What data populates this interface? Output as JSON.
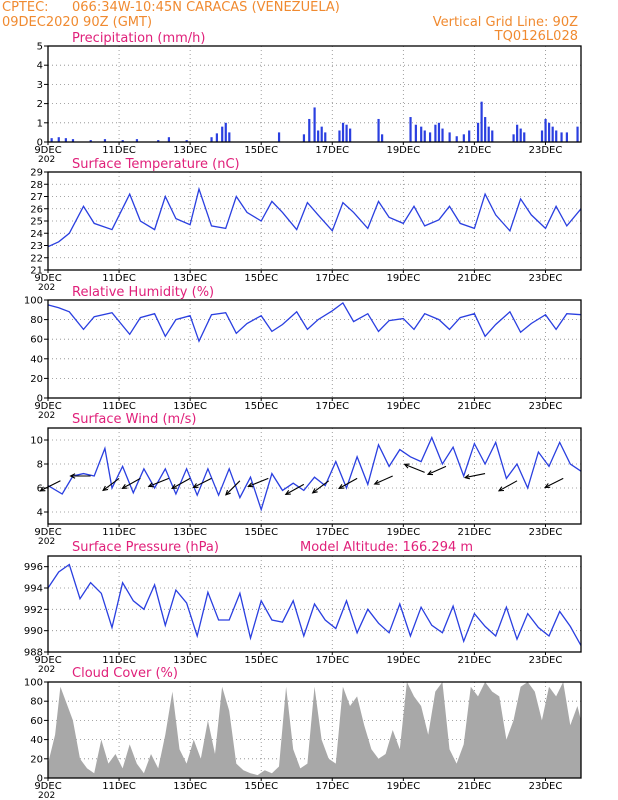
{
  "header": {
    "source": "CPTEC:",
    "location": "066:34W-10:45N  CARACAS (VENEZUELA)",
    "init_time": "09DEC2020 90Z (GMT)",
    "grid_note": "Vertical Grid Line: 90Z",
    "code": "TQ0126L028"
  },
  "colors": {
    "header": "#f08a30",
    "titles": "#e0207a",
    "series": "#2a3fe0",
    "cloud_fill": "#a8a8a8",
    "arrows": "#000000"
  },
  "x_axis": {
    "tick_labels": [
      "9DEC",
      "11DEC",
      "13DEC",
      "15DEC",
      "17DEC",
      "19DEC",
      "21DEC",
      "23DEC"
    ],
    "tick_days": [
      0,
      2,
      4,
      6,
      8,
      10,
      12,
      14
    ],
    "range_days": [
      0,
      15
    ],
    "year_stub": "202"
  },
  "chart_data": [
    {
      "id": "precipitation",
      "type": "bar",
      "title": "Precipitation (mm/h)",
      "ylim": [
        0,
        5
      ],
      "yticks": [
        0,
        1,
        2,
        3,
        4,
        5
      ],
      "grid": true,
      "events": [
        {
          "day": 0.1,
          "value": 0.2
        },
        {
          "day": 0.3,
          "value": 0.25
        },
        {
          "day": 0.5,
          "value": 0.2
        },
        {
          "day": 0.7,
          "value": 0.15
        },
        {
          "day": 1.2,
          "value": 0.1
        },
        {
          "day": 1.6,
          "value": 0.15
        },
        {
          "day": 2.1,
          "value": 0.1
        },
        {
          "day": 2.5,
          "value": 0.15
        },
        {
          "day": 3.1,
          "value": 0.1
        },
        {
          "day": 3.4,
          "value": 0.25
        },
        {
          "day": 3.9,
          "value": 0.1
        },
        {
          "day": 4.6,
          "value": 0.25
        },
        {
          "day": 4.75,
          "value": 0.45
        },
        {
          "day": 4.9,
          "value": 0.8
        },
        {
          "day": 5.0,
          "value": 1.0
        },
        {
          "day": 5.1,
          "value": 0.5
        },
        {
          "day": 6.5,
          "value": 0.5
        },
        {
          "day": 7.2,
          "value": 0.4
        },
        {
          "day": 7.35,
          "value": 1.2
        },
        {
          "day": 7.5,
          "value": 1.8
        },
        {
          "day": 7.6,
          "value": 0.6
        },
        {
          "day": 7.7,
          "value": 0.8
        },
        {
          "day": 7.8,
          "value": 0.5
        },
        {
          "day": 8.2,
          "value": 0.6
        },
        {
          "day": 8.3,
          "value": 1.0
        },
        {
          "day": 8.4,
          "value": 0.9
        },
        {
          "day": 8.5,
          "value": 0.7
        },
        {
          "day": 9.3,
          "value": 1.2
        },
        {
          "day": 9.4,
          "value": 0.4
        },
        {
          "day": 10.2,
          "value": 1.3
        },
        {
          "day": 10.35,
          "value": 0.9
        },
        {
          "day": 10.5,
          "value": 0.8
        },
        {
          "day": 10.6,
          "value": 0.6
        },
        {
          "day": 10.75,
          "value": 0.5
        },
        {
          "day": 10.9,
          "value": 0.9
        },
        {
          "day": 11.0,
          "value": 1.0
        },
        {
          "day": 11.1,
          "value": 0.7
        },
        {
          "day": 11.3,
          "value": 0.5
        },
        {
          "day": 11.5,
          "value": 0.3
        },
        {
          "day": 11.7,
          "value": 0.4
        },
        {
          "day": 11.85,
          "value": 0.6
        },
        {
          "day": 12.1,
          "value": 1.0
        },
        {
          "day": 12.2,
          "value": 2.1
        },
        {
          "day": 12.3,
          "value": 1.3
        },
        {
          "day": 12.4,
          "value": 0.8
        },
        {
          "day": 12.5,
          "value": 0.6
        },
        {
          "day": 13.1,
          "value": 0.4
        },
        {
          "day": 13.2,
          "value": 0.9
        },
        {
          "day": 13.3,
          "value": 0.7
        },
        {
          "day": 13.4,
          "value": 0.5
        },
        {
          "day": 13.9,
          "value": 0.6
        },
        {
          "day": 14.0,
          "value": 1.2
        },
        {
          "day": 14.1,
          "value": 1.0
        },
        {
          "day": 14.2,
          "value": 0.8
        },
        {
          "day": 14.3,
          "value": 0.6
        },
        {
          "day": 14.45,
          "value": 0.5
        },
        {
          "day": 14.6,
          "value": 0.5
        },
        {
          "day": 14.9,
          "value": 0.8
        }
      ]
    },
    {
      "id": "temperature",
      "type": "line",
      "title": "Surface Temperature (nC)",
      "ylim": [
        21,
        29
      ],
      "yticks": [
        21,
        22,
        23,
        24,
        25,
        26,
        27,
        28,
        29
      ],
      "grid": true,
      "x": [
        0,
        0.3,
        0.6,
        1,
        1.3,
        1.8,
        2.3,
        2.6,
        3,
        3.3,
        3.6,
        4,
        4.25,
        4.6,
        5,
        5.3,
        5.6,
        6,
        6.3,
        6.6,
        7,
        7.3,
        7.6,
        8,
        8.3,
        8.6,
        9,
        9.3,
        9.6,
        10,
        10.3,
        10.6,
        11,
        11.3,
        11.6,
        12,
        12.3,
        12.6,
        13,
        13.3,
        13.6,
        14,
        14.3,
        14.6,
        15
      ],
      "y": [
        22.9,
        23.3,
        24.0,
        26.2,
        24.8,
        24.3,
        27.2,
        25.0,
        24.3,
        27.0,
        25.2,
        24.7,
        27.6,
        24.6,
        24.4,
        27.0,
        25.7,
        25.0,
        26.6,
        25.7,
        24.3,
        26.5,
        25.5,
        24.2,
        26.5,
        25.7,
        24.4,
        26.6,
        25.3,
        24.8,
        26.2,
        24.6,
        25.1,
        26.2,
        24.8,
        24.4,
        27.2,
        25.5,
        24.2,
        26.8,
        25.5,
        24.4,
        26.2,
        24.6,
        26.0
      ]
    },
    {
      "id": "humidity",
      "type": "line",
      "title": "Relative Humidity (%)",
      "ylim": [
        0,
        100
      ],
      "yticks": [
        0,
        20,
        40,
        60,
        80,
        100
      ],
      "grid": true,
      "x": [
        0,
        0.3,
        0.6,
        1,
        1.3,
        1.8,
        2.3,
        2.6,
        3,
        3.3,
        3.6,
        4,
        4.25,
        4.6,
        5,
        5.3,
        5.6,
        6,
        6.3,
        6.6,
        7,
        7.3,
        7.6,
        8,
        8.3,
        8.6,
        9,
        9.3,
        9.6,
        10,
        10.3,
        10.6,
        11,
        11.3,
        11.6,
        12,
        12.3,
        12.6,
        13,
        13.3,
        13.6,
        14,
        14.3,
        14.6,
        15
      ],
      "y": [
        95,
        92,
        88,
        70,
        83,
        87,
        65,
        82,
        86,
        63,
        80,
        84,
        58,
        85,
        87,
        66,
        76,
        84,
        68,
        75,
        88,
        70,
        80,
        89,
        97,
        78,
        86,
        68,
        79,
        81,
        70,
        86,
        80,
        70,
        82,
        86,
        63,
        75,
        88,
        67,
        76,
        85,
        70,
        86,
        85
      ]
    },
    {
      "id": "wind",
      "type": "line",
      "title": "Surface Wind (m/s)",
      "ylim": [
        3,
        11
      ],
      "yticks": [
        4,
        6,
        8,
        10
      ],
      "grid": true,
      "x": [
        0,
        0.4,
        0.7,
        1,
        1.3,
        1.6,
        1.8,
        2.1,
        2.4,
        2.7,
        3,
        3.3,
        3.6,
        3.9,
        4.2,
        4.5,
        4.8,
        5.1,
        5.4,
        5.7,
        6,
        6.3,
        6.6,
        6.9,
        7.2,
        7.5,
        7.8,
        8.1,
        8.4,
        8.7,
        9,
        9.3,
        9.6,
        9.9,
        10.2,
        10.5,
        10.8,
        11.1,
        11.4,
        11.7,
        12,
        12.3,
        12.6,
        12.9,
        13.2,
        13.5,
        13.8,
        14.1,
        14.4,
        14.7,
        15
      ],
      "y": [
        6.2,
        5.5,
        7.0,
        7.2,
        7.0,
        9.3,
        6.0,
        7.8,
        5.6,
        7.6,
        6.0,
        7.6,
        5.5,
        7.6,
        5.4,
        7.6,
        5.4,
        7.6,
        5.2,
        6.9,
        4.2,
        7.2,
        5.8,
        6.4,
        5.8,
        6.9,
        6.2,
        8.2,
        6.0,
        8.6,
        6.3,
        9.6,
        7.8,
        9.2,
        8.6,
        8.2,
        10.2,
        8.0,
        9.4,
        7.0,
        9.7,
        8.0,
        9.8,
        6.8,
        8.0,
        6.0,
        9.0,
        7.8,
        9.8,
        8.0,
        7.4
      ]
    },
    {
      "id": "pressure",
      "type": "line",
      "title": "Surface Pressure (hPa)",
      "subtitle": "Model Altitude: 166.294 m",
      "ylim": [
        988,
        997
      ],
      "yticks": [
        988,
        990,
        992,
        994,
        996
      ],
      "grid": true,
      "x": [
        0,
        0.3,
        0.6,
        0.9,
        1.2,
        1.5,
        1.8,
        2.1,
        2.4,
        2.7,
        3,
        3.3,
        3.6,
        3.9,
        4.2,
        4.5,
        4.8,
        5.1,
        5.4,
        5.7,
        6,
        6.3,
        6.6,
        6.9,
        7.2,
        7.5,
        7.8,
        8.1,
        8.4,
        8.7,
        9,
        9.3,
        9.6,
        9.9,
        10.2,
        10.5,
        10.8,
        11.1,
        11.4,
        11.7,
        12,
        12.3,
        12.6,
        12.9,
        13.2,
        13.5,
        13.8,
        14.1,
        14.4,
        14.7,
        15
      ],
      "y": [
        994.0,
        995.5,
        996.2,
        993.0,
        994.5,
        993.5,
        990.3,
        994.5,
        992.8,
        992.0,
        994.3,
        990.5,
        993.8,
        992.6,
        989.5,
        993.6,
        991.0,
        991.0,
        993.5,
        989.3,
        992.8,
        991.0,
        990.8,
        992.8,
        989.5,
        992.5,
        991.0,
        990.2,
        992.8,
        989.8,
        992.0,
        990.7,
        989.8,
        992.5,
        989.5,
        992.2,
        990.5,
        989.8,
        992.3,
        989.0,
        991.6,
        990.4,
        989.5,
        992.2,
        989.2,
        991.6,
        990.3,
        989.5,
        991.8,
        990.4,
        988.6
      ]
    },
    {
      "id": "cloud",
      "type": "area",
      "title": "Cloud Cover (%)",
      "ylim": [
        0,
        100
      ],
      "yticks": [
        0,
        20,
        40,
        60,
        80,
        100
      ],
      "grid": true,
      "x": [
        0,
        0.2,
        0.35,
        0.5,
        0.7,
        0.9,
        1.1,
        1.3,
        1.5,
        1.7,
        1.9,
        2.1,
        2.3,
        2.5,
        2.7,
        2.9,
        3.1,
        3.3,
        3.5,
        3.7,
        3.9,
        4.1,
        4.3,
        4.5,
        4.7,
        4.9,
        5.1,
        5.3,
        5.5,
        5.7,
        5.9,
        6.1,
        6.3,
        6.5,
        6.7,
        6.9,
        7.1,
        7.3,
        7.5,
        7.7,
        7.9,
        8.1,
        8.3,
        8.5,
        8.7,
        8.9,
        9.1,
        9.3,
        9.5,
        9.7,
        9.9,
        10.1,
        10.3,
        10.5,
        10.7,
        10.9,
        11.1,
        11.3,
        11.5,
        11.7,
        11.9,
        12.1,
        12.3,
        12.5,
        12.7,
        12.9,
        13.1,
        13.3,
        13.5,
        13.7,
        13.9,
        14.1,
        14.3,
        14.5,
        14.7,
        14.9,
        15
      ],
      "y": [
        15,
        45,
        95,
        80,
        60,
        20,
        10,
        5,
        40,
        15,
        25,
        10,
        35,
        15,
        5,
        25,
        10,
        45,
        90,
        30,
        15,
        40,
        20,
        60,
        25,
        95,
        70,
        15,
        8,
        5,
        3,
        8,
        5,
        12,
        95,
        30,
        10,
        15,
        95,
        40,
        20,
        15,
        95,
        75,
        85,
        55,
        30,
        20,
        25,
        50,
        30,
        100,
        85,
        75,
        45,
        90,
        100,
        30,
        15,
        35,
        95,
        85,
        100,
        90,
        85,
        40,
        60,
        95,
        100,
        90,
        60,
        95,
        85,
        100,
        55,
        75,
        60
      ]
    }
  ],
  "wind_arrows": [
    {
      "day": 0.35,
      "value": 6.6,
      "u": -1.0,
      "v": -0.5
    },
    {
      "day": 1.2,
      "value": 7.0,
      "u": -1.0,
      "v": 0.0
    },
    {
      "day": 2.0,
      "value": 6.8,
      "u": -0.8,
      "v": -0.6
    },
    {
      "day": 2.6,
      "value": 6.8,
      "u": -0.9,
      "v": -0.5
    },
    {
      "day": 3.4,
      "value": 6.8,
      "u": -1.0,
      "v": -0.4
    },
    {
      "day": 4.0,
      "value": 6.8,
      "u": -0.9,
      "v": -0.5
    },
    {
      "day": 4.6,
      "value": 6.8,
      "u": -0.9,
      "v": -0.45
    },
    {
      "day": 5.4,
      "value": 6.6,
      "u": -0.7,
      "v": -0.7
    },
    {
      "day": 6.2,
      "value": 6.8,
      "u": -1.0,
      "v": -0.4
    },
    {
      "day": 7.2,
      "value": 6.3,
      "u": -0.9,
      "v": -0.5
    },
    {
      "day": 7.9,
      "value": 6.6,
      "u": -0.8,
      "v": -0.6
    },
    {
      "day": 8.7,
      "value": 6.8,
      "u": -0.9,
      "v": -0.5
    },
    {
      "day": 9.7,
      "value": 7.0,
      "u": -0.9,
      "v": -0.4
    },
    {
      "day": 10.6,
      "value": 7.3,
      "u": -1.0,
      "v": 0.4
    },
    {
      "day": 11.2,
      "value": 7.8,
      "u": -0.9,
      "v": -0.4
    },
    {
      "day": 12.3,
      "value": 7.2,
      "u": -1.0,
      "v": -0.2
    },
    {
      "day": 13.2,
      "value": 6.6,
      "u": -0.9,
      "v": -0.5
    },
    {
      "day": 14.5,
      "value": 6.8,
      "u": -0.9,
      "v": -0.45
    }
  ]
}
